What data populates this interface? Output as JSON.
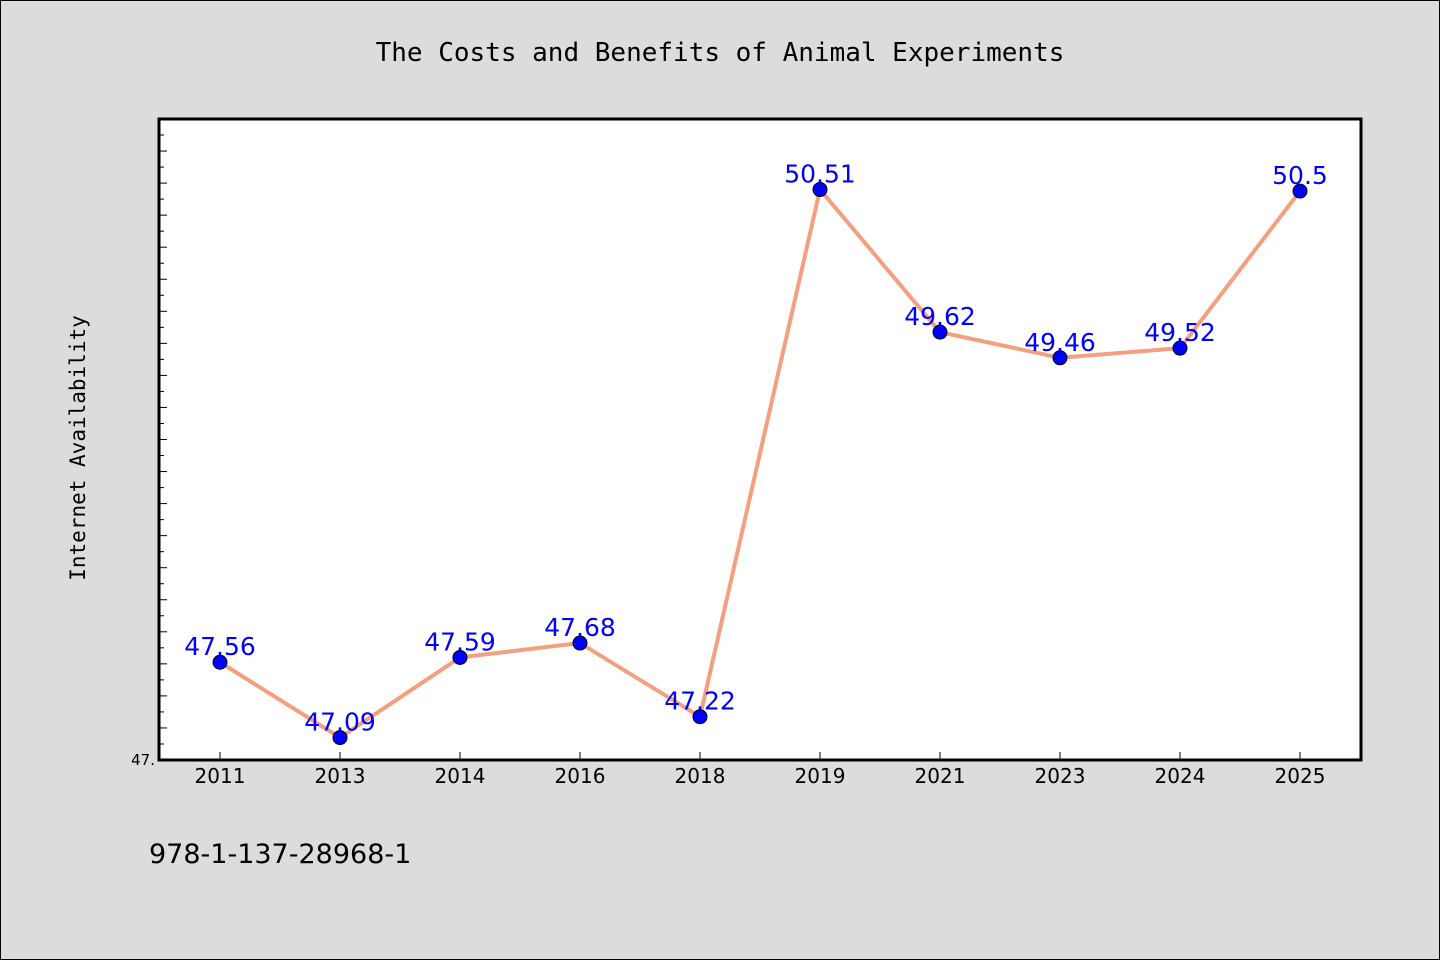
{
  "chart_data": {
    "type": "line",
    "title": "The Costs and Benefits of Animal Experiments",
    "xlabel": "",
    "ylabel": "Internet Availability",
    "categories": [
      "2011",
      "2013",
      "2014",
      "2016",
      "2018",
      "2019",
      "2021",
      "2023",
      "2024",
      "2025"
    ],
    "values": [
      47.56,
      47.09,
      47.59,
      47.68,
      47.22,
      50.51,
      49.62,
      49.46,
      49.52,
      50.5
    ],
    "data_labels": [
      "47.56",
      "47.09",
      "47.59",
      "47.68",
      "47.22",
      "50.51",
      "49.62",
      "49.46",
      "49.52",
      "50.5"
    ],
    "ylim": [
      46.95,
      50.95
    ],
    "y_tick_labels": [
      {
        "value": 46.95,
        "label": "47."
      }
    ],
    "grid": false,
    "legend": "none",
    "colors": {
      "line": "#f4a07f",
      "marker": "#0000ff",
      "data_label": "#0000ff",
      "plot_background": "#ffffff",
      "figure_background": "#dcdcdc"
    }
  },
  "footnote": "978-1-137-28968-1"
}
